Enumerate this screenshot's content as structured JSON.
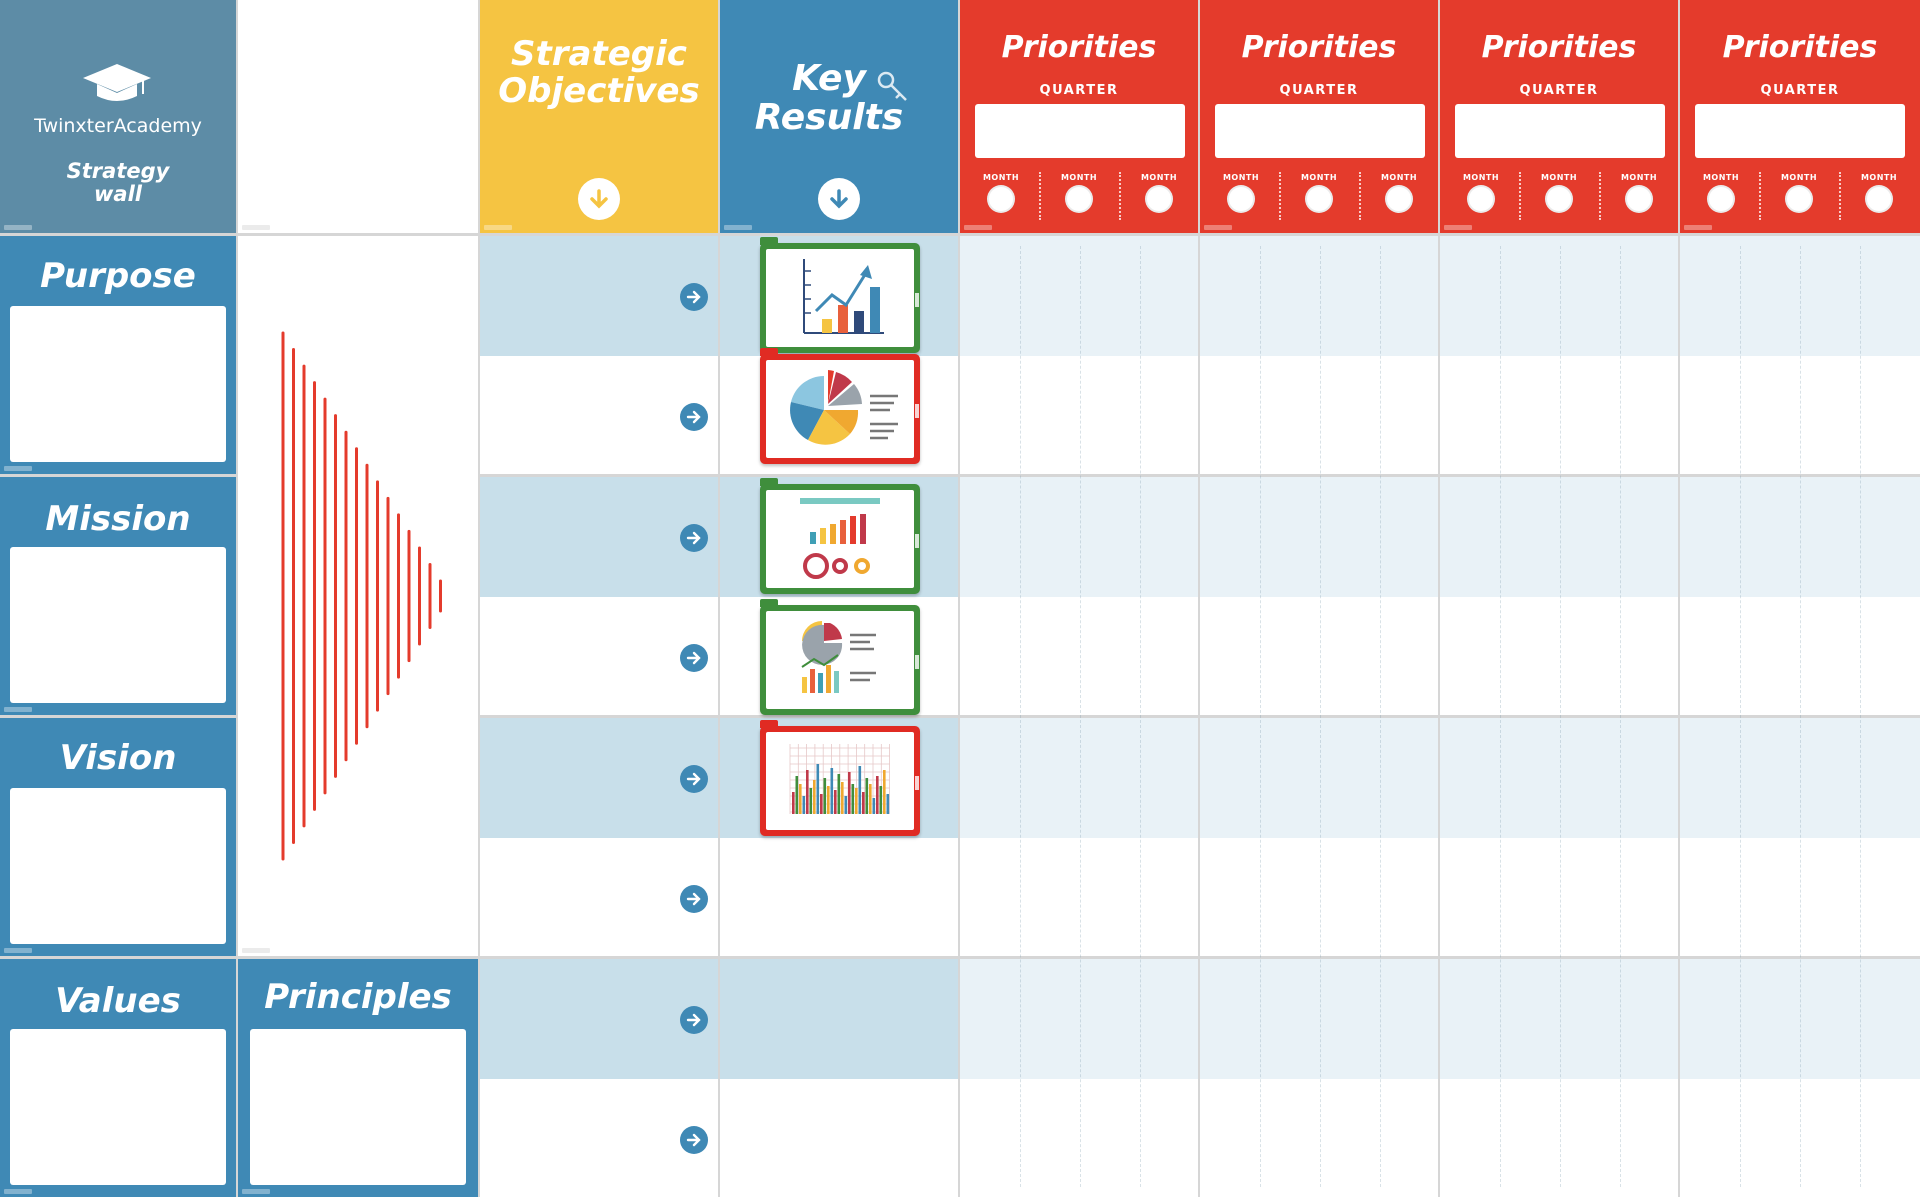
{
  "brand": {
    "name": "TwinxterAcademy",
    "subtitle": "Strategy\nwall",
    "logo_icon": "graduation-cap-icon"
  },
  "columns": {
    "strategic_objectives": "Strategic\nObjectives",
    "key_results": "Key\nResults",
    "key_icon": "key-icon"
  },
  "priorities": [
    {
      "title": "Priorities",
      "quarter_label": "QUARTER",
      "months": [
        "MONTH",
        "MONTH",
        "MONTH"
      ]
    },
    {
      "title": "Priorities",
      "quarter_label": "QUARTER",
      "months": [
        "MONTH",
        "MONTH",
        "MONTH"
      ]
    },
    {
      "title": "Priorities",
      "quarter_label": "QUARTER",
      "months": [
        "MONTH",
        "MONTH",
        "MONTH"
      ]
    },
    {
      "title": "Priorities",
      "quarter_label": "QUARTER",
      "months": [
        "MONTH",
        "MONTH",
        "MONTH"
      ]
    }
  ],
  "rows": [
    {
      "label": "Purpose"
    },
    {
      "label": "Mission"
    },
    {
      "label": "Vision"
    },
    {
      "label": "Values"
    }
  ],
  "principles": {
    "label": "Principles"
  },
  "key_result_cards": [
    {
      "icon": "growth-chart-icon",
      "frame": "green"
    },
    {
      "icon": "pie-chart-report-icon",
      "frame": "red"
    },
    {
      "icon": "bar-dashboard-icon",
      "frame": "green"
    },
    {
      "icon": "mixed-charts-icon",
      "frame": "green"
    },
    {
      "icon": "grouped-bar-chart-icon",
      "frame": "red"
    }
  ],
  "colors": {
    "blue": "#3f89b5",
    "slate": "#5d8ca6",
    "yellow": "#f5c442",
    "red": "#e43b2c",
    "band_light": "#c8dfea",
    "band_pale": "#e9f2f7",
    "card_green": "#3f8e3c",
    "card_red": "#e02b23"
  }
}
